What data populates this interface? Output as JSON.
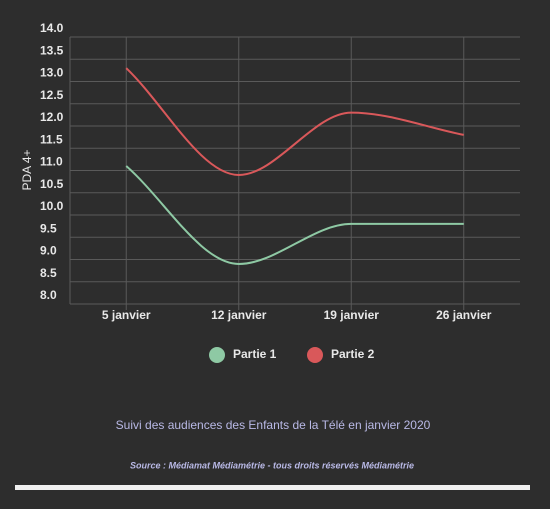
{
  "chart_data": {
    "type": "line",
    "title": "Suivi des audiences des Enfants de la Télé en janvier 2020",
    "source": "Source : Médiamat Médiamétrie - tous droits réservés Médiamétrie",
    "ylabel": "PDA 4+",
    "categories": [
      "5 janvier",
      "12 janvier",
      "19 janvier",
      "26 janvier"
    ],
    "series": [
      {
        "name": "Partie 1",
        "color": "#8ec9a4",
        "values": [
          11.1,
          8.9,
          9.8,
          9.8
        ]
      },
      {
        "name": "Partie 2",
        "color": "#d9585a",
        "values": [
          13.3,
          10.9,
          12.3,
          11.8
        ]
      }
    ],
    "ylim": [
      8,
      14
    ],
    "yticks": [
      {
        "value": 8,
        "label": "8.0"
      },
      8.5,
      {
        "value": 9,
        "label": "9.0"
      },
      9.5,
      {
        "value": 10,
        "label": "10.0"
      },
      10.5,
      {
        "value": 11,
        "label": "11.0"
      },
      11.5,
      {
        "value": 12,
        "label": "12.0"
      },
      12.5,
      {
        "value": 13,
        "label": "13.0"
      },
      13.5,
      {
        "value": 14,
        "label": "14.0"
      }
    ],
    "grid": true,
    "smooth": true,
    "legend": "bottom"
  }
}
